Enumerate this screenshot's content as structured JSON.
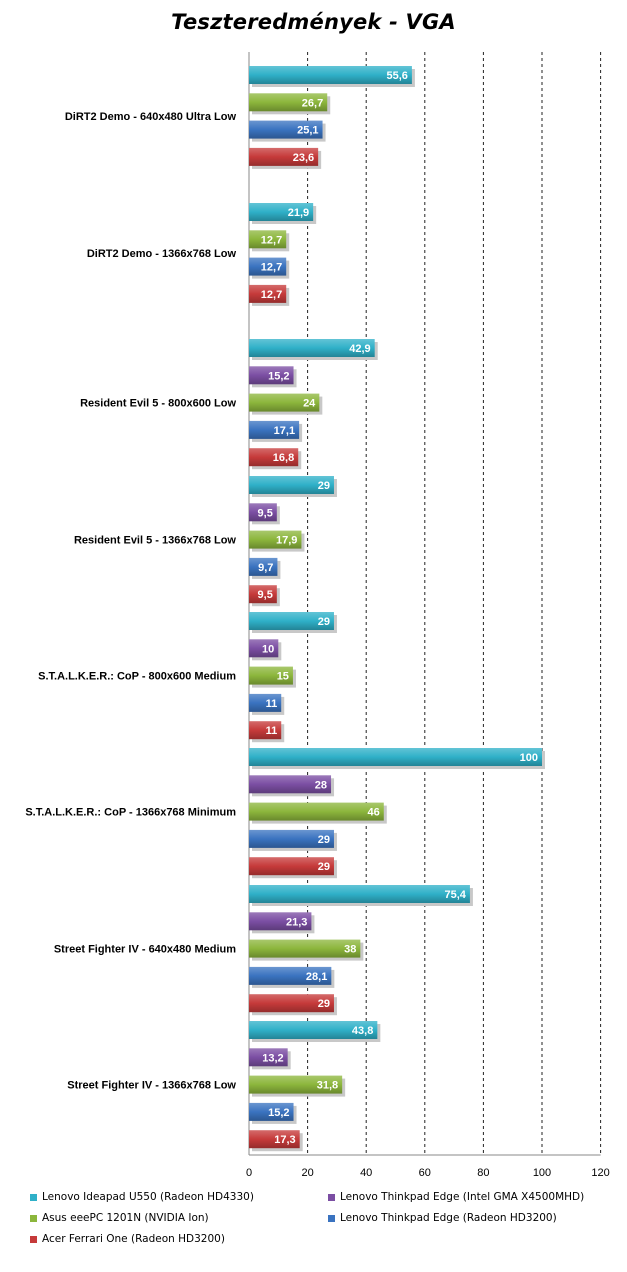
{
  "chart_data": {
    "type": "bar",
    "orientation": "horizontal",
    "title": "Teszteredmények - VGA",
    "xlim": [
      0,
      120
    ],
    "xticks": [
      0,
      20,
      40,
      60,
      80,
      100,
      120
    ],
    "grid": "vertical",
    "legend_position": "bottom",
    "series": [
      {
        "name": "Lenovo Ideapad U550 (Radeon HD4330)",
        "color": "#2fb0c8"
      },
      {
        "name": "Lenovo Thinkpad Edge (Intel GMA X4500MHD)",
        "color": "#7b4ea3"
      },
      {
        "name": "Asus eeePC 1201N (NVIDIA  Ion)",
        "color": "#8cb63c"
      },
      {
        "name": "Lenovo Thinkpad Edge (Radeon HD3200)",
        "color": "#3a73c0"
      },
      {
        "name": "Acer Ferrari One (Radeon HD3200)",
        "color": "#c63a3a"
      }
    ],
    "categories": [
      {
        "label": "DiRT2  Demo - 640x480 Ultra Low",
        "bars": [
          {
            "series": 0,
            "value": 55.6,
            "label": "55,6"
          },
          {
            "series": 2,
            "value": 26.7,
            "label": "26,7"
          },
          {
            "series": 3,
            "value": 25.1,
            "label": "25,1"
          },
          {
            "series": 4,
            "value": 23.6,
            "label": "23,6"
          }
        ]
      },
      {
        "label": "DiRT2  Demo - 1366x768 Low",
        "bars": [
          {
            "series": 0,
            "value": 21.9,
            "label": "21,9"
          },
          {
            "series": 2,
            "value": 12.7,
            "label": "12,7"
          },
          {
            "series": 3,
            "value": 12.7,
            "label": "12,7"
          },
          {
            "series": 4,
            "value": 12.7,
            "label": "12,7"
          }
        ]
      },
      {
        "label": "Resident Evil  5 - 800x600 Low",
        "bars": [
          {
            "series": 0,
            "value": 42.9,
            "label": "42,9"
          },
          {
            "series": 1,
            "value": 15.2,
            "label": "15,2"
          },
          {
            "series": 2,
            "value": 24,
            "label": "24"
          },
          {
            "series": 3,
            "value": 17.1,
            "label": "17,1"
          },
          {
            "series": 4,
            "value": 16.8,
            "label": "16,8"
          }
        ]
      },
      {
        "label": "Resident Evil  5 - 1366x768 Low",
        "bars": [
          {
            "series": 0,
            "value": 29,
            "label": "29"
          },
          {
            "series": 1,
            "value": 9.5,
            "label": "9,5"
          },
          {
            "series": 2,
            "value": 17.9,
            "label": "17,9"
          },
          {
            "series": 3,
            "value": 9.7,
            "label": "9,7"
          },
          {
            "series": 4,
            "value": 9.5,
            "label": "9,5"
          }
        ]
      },
      {
        "label": "S.T.A.L.K.E.R.: CoP - 800x600 Medium",
        "bars": [
          {
            "series": 0,
            "value": 29,
            "label": "29"
          },
          {
            "series": 1,
            "value": 10,
            "label": "10"
          },
          {
            "series": 2,
            "value": 15,
            "label": "15"
          },
          {
            "series": 3,
            "value": 11,
            "label": "11"
          },
          {
            "series": 4,
            "value": 11,
            "label": "11"
          }
        ]
      },
      {
        "label": "S.T.A.L.K.E.R.: CoP - 1366x768 Minimum",
        "bars": [
          {
            "series": 0,
            "value": 100,
            "label": "100"
          },
          {
            "series": 1,
            "value": 28,
            "label": "28"
          },
          {
            "series": 2,
            "value": 46,
            "label": "46"
          },
          {
            "series": 3,
            "value": 29,
            "label": "29"
          },
          {
            "series": 4,
            "value": 29,
            "label": "29"
          }
        ]
      },
      {
        "label": "Street Fighter IV - 640x480 Medium",
        "bars": [
          {
            "series": 0,
            "value": 75.4,
            "label": "75,4"
          },
          {
            "series": 1,
            "value": 21.3,
            "label": "21,3"
          },
          {
            "series": 2,
            "value": 38,
            "label": "38"
          },
          {
            "series": 3,
            "value": 28.1,
            "label": "28,1"
          },
          {
            "series": 4,
            "value": 29,
            "label": "29"
          }
        ]
      },
      {
        "label": "Street Fighter IV - 1366x768 Low",
        "bars": [
          {
            "series": 0,
            "value": 43.8,
            "label": "43,8"
          },
          {
            "series": 1,
            "value": 13.2,
            "label": "13,2"
          },
          {
            "series": 2,
            "value": 31.8,
            "label": "31,8"
          },
          {
            "series": 3,
            "value": 15.2,
            "label": "15,2"
          },
          {
            "series": 4,
            "value": 17.3,
            "label": "17,3"
          }
        ]
      }
    ]
  }
}
